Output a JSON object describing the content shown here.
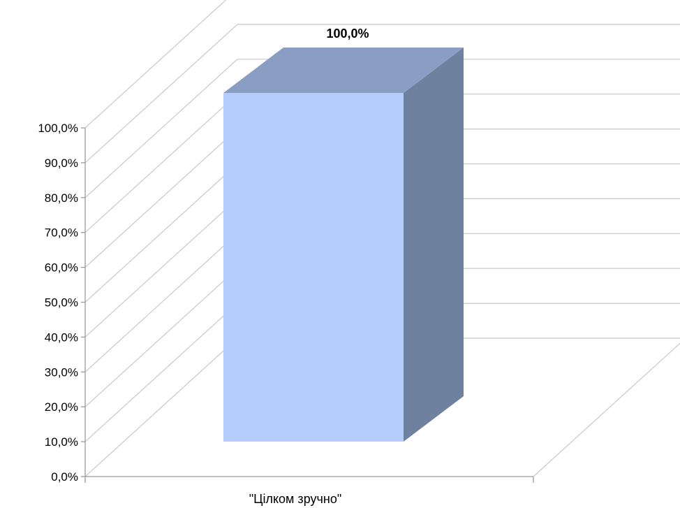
{
  "chart_data": {
    "type": "bar",
    "categories": [
      "\"Цілком зручно\""
    ],
    "values": [
      100.0
    ],
    "data_labels": [
      "100,0%"
    ],
    "ylim": [
      0,
      100
    ],
    "yticks": [
      "0,0%",
      "10,0%",
      "20,0%",
      "30,0%",
      "40,0%",
      "50,0%",
      "60,0%",
      "70,0%",
      "80,0%",
      "90,0%",
      "100,0%"
    ],
    "grid": true,
    "legend": "none",
    "style": "3d-column",
    "colors": {
      "bar_front": "#b4cdfd",
      "bar_top": "#8a9ec4",
      "bar_side": "#6e819f",
      "grid": "#c8c8c8",
      "axis": "#9a9a9a"
    }
  }
}
